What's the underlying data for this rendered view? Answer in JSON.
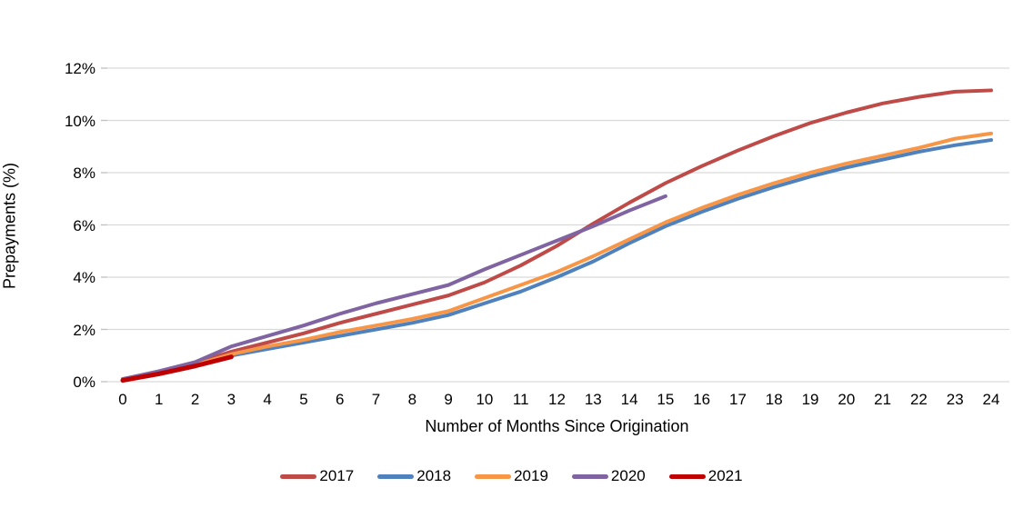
{
  "chart_data": {
    "type": "line",
    "title": "",
    "xlabel": "Number of Months Since Origination",
    "ylabel": "Prepayments (%)",
    "x_ticks": [
      0,
      1,
      2,
      3,
      4,
      5,
      6,
      7,
      8,
      9,
      10,
      11,
      12,
      13,
      14,
      15,
      16,
      17,
      18,
      19,
      20,
      21,
      22,
      23,
      24
    ],
    "y_tick_labels": [
      "0%",
      "2%",
      "4%",
      "6%",
      "8%",
      "10%",
      "12%"
    ],
    "y_tick_values": [
      0,
      2,
      4,
      6,
      8,
      10,
      12
    ],
    "xlim": [
      0,
      24
    ],
    "ylim": [
      0,
      12
    ],
    "grid": "horizontal",
    "legend_position": "bottom",
    "series": [
      {
        "name": "2017",
        "color": "#BE4B48",
        "x": [
          0,
          1,
          2,
          3,
          4,
          5,
          6,
          7,
          8,
          9,
          10,
          11,
          12,
          13,
          14,
          15,
          16,
          17,
          18,
          19,
          20,
          21,
          22,
          23,
          24
        ],
        "values": [
          0.1,
          0.35,
          0.7,
          1.15,
          1.5,
          1.85,
          2.25,
          2.6,
          2.95,
          3.3,
          3.8,
          4.45,
          5.2,
          6.05,
          6.85,
          7.6,
          8.25,
          8.85,
          9.4,
          9.9,
          10.3,
          10.65,
          10.9,
          11.1,
          11.15
        ]
      },
      {
        "name": "2018",
        "color": "#4F81BD",
        "x": [
          0,
          1,
          2,
          3,
          4,
          5,
          6,
          7,
          8,
          9,
          10,
          11,
          12,
          13,
          14,
          15,
          16,
          17,
          18,
          19,
          20,
          21,
          22,
          23,
          24
        ],
        "values": [
          0.1,
          0.3,
          0.6,
          1.0,
          1.25,
          1.5,
          1.75,
          2.0,
          2.25,
          2.55,
          3.0,
          3.45,
          4.0,
          4.6,
          5.3,
          5.95,
          6.5,
          7.0,
          7.45,
          7.85,
          8.2,
          8.5,
          8.8,
          9.05,
          9.25
        ]
      },
      {
        "name": "2019",
        "color": "#F79646",
        "x": [
          0,
          1,
          2,
          3,
          4,
          5,
          6,
          7,
          8,
          9,
          10,
          11,
          12,
          13,
          14,
          15,
          16,
          17,
          18,
          19,
          20,
          21,
          22,
          23,
          24
        ],
        "values": [
          0.1,
          0.35,
          0.65,
          1.05,
          1.35,
          1.6,
          1.9,
          2.15,
          2.4,
          2.7,
          3.2,
          3.7,
          4.2,
          4.8,
          5.45,
          6.1,
          6.65,
          7.15,
          7.6,
          8.0,
          8.35,
          8.65,
          8.95,
          9.3,
          9.5
        ]
      },
      {
        "name": "2020",
        "color": "#8064A2",
        "x": [
          0,
          1,
          2,
          3,
          4,
          5,
          6,
          7,
          8,
          9,
          10,
          11,
          12,
          13,
          14,
          15
        ],
        "values": [
          0.1,
          0.4,
          0.75,
          1.35,
          1.75,
          2.15,
          2.6,
          3.0,
          3.35,
          3.7,
          4.3,
          4.85,
          5.4,
          5.95,
          6.55,
          7.1
        ]
      },
      {
        "name": "2021",
        "color": "#C00000",
        "x": [
          0,
          1,
          2,
          3
        ],
        "values": [
          0.05,
          0.3,
          0.6,
          0.95
        ]
      }
    ]
  },
  "colors": {
    "gridline": "#D9D9D9",
    "tick_mark": "#BFBFBF",
    "text": "#000000",
    "background": "#FFFFFF"
  }
}
